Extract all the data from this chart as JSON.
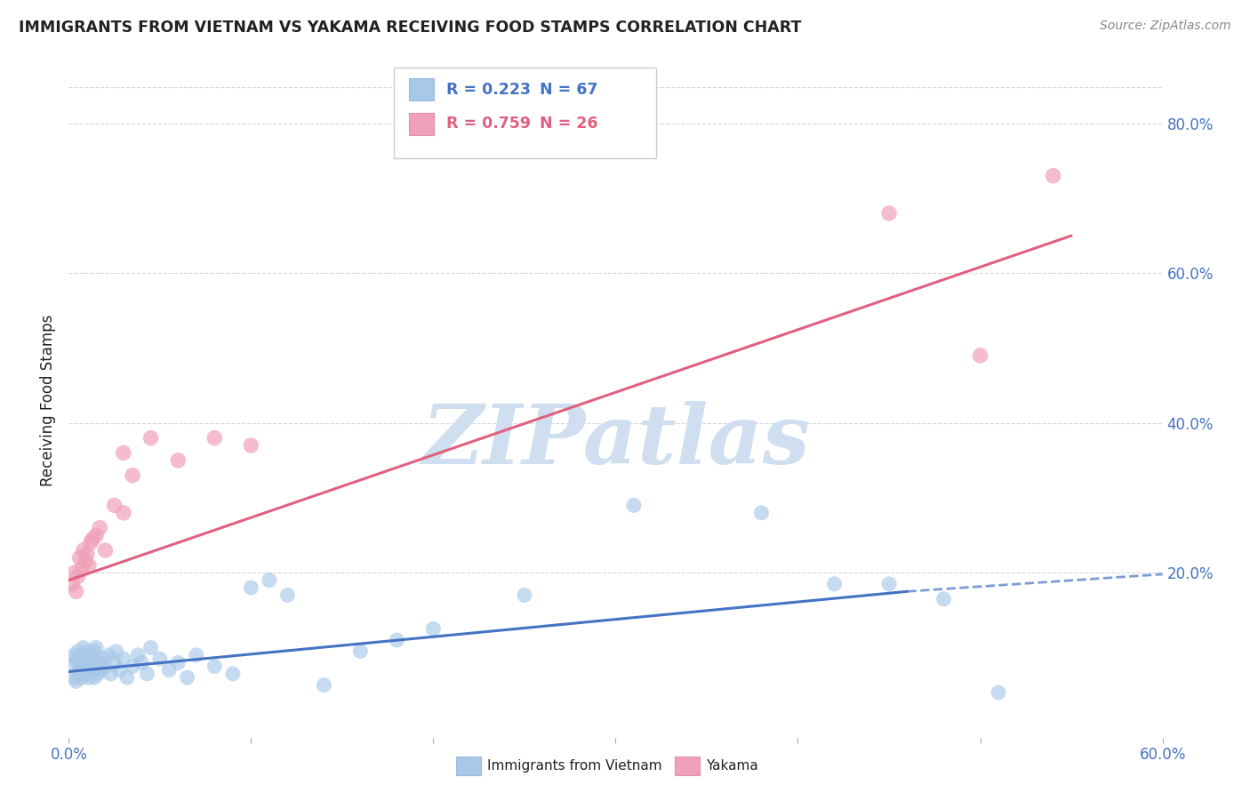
{
  "title": "IMMIGRANTS FROM VIETNAM VS YAKAMA RECEIVING FOOD STAMPS CORRELATION CHART",
  "source": "Source: ZipAtlas.com",
  "ylabel": "Receiving Food Stamps",
  "xlim": [
    0.0,
    0.6
  ],
  "ylim": [
    -0.02,
    0.88
  ],
  "yticks": [
    0.0,
    0.2,
    0.4,
    0.6,
    0.8
  ],
  "ytick_labels": [
    "",
    "20.0%",
    "40.0%",
    "60.0%",
    "80.0%"
  ],
  "xtick_positions": [
    0.0,
    0.1,
    0.2,
    0.3,
    0.4,
    0.5,
    0.6
  ],
  "xtick_labels": [
    "0.0%",
    "",
    "",
    "",
    "",
    "",
    "60.0%"
  ],
  "legend_r_blue": "R = 0.223",
  "legend_n_blue": "N = 67",
  "legend_r_pink": "R = 0.759",
  "legend_n_pink": "N = 26",
  "blue_color": "#a8c8e8",
  "pink_color": "#f0a0b8",
  "line_blue": "#4472c4",
  "line_pink": "#e06080",
  "watermark": "ZIPatlas",
  "watermark_color": "#d0dff0",
  "axis_tick_color": "#4472c4",
  "title_color": "#222222",
  "source_color": "#888888",
  "background_color": "#ffffff",
  "grid_color": "#cccccc",
  "legend_blue_text_color": "#4472c4",
  "legend_pink_text_color": "#e06080",
  "legend_blue_n_color": "#4472c4",
  "legend_pink_n_color": "#e06080",
  "blue_scatter_x": [
    0.002,
    0.003,
    0.003,
    0.004,
    0.004,
    0.005,
    0.005,
    0.005,
    0.006,
    0.006,
    0.007,
    0.007,
    0.008,
    0.008,
    0.009,
    0.009,
    0.01,
    0.01,
    0.01,
    0.011,
    0.011,
    0.012,
    0.012,
    0.013,
    0.013,
    0.014,
    0.014,
    0.015,
    0.015,
    0.016,
    0.017,
    0.018,
    0.019,
    0.02,
    0.022,
    0.023,
    0.025,
    0.026,
    0.028,
    0.03,
    0.032,
    0.035,
    0.038,
    0.04,
    0.043,
    0.045,
    0.05,
    0.055,
    0.06,
    0.065,
    0.07,
    0.08,
    0.09,
    0.1,
    0.11,
    0.12,
    0.14,
    0.16,
    0.18,
    0.2,
    0.25,
    0.31,
    0.38,
    0.42,
    0.45,
    0.48,
    0.51
  ],
  "blue_scatter_y": [
    0.075,
    0.06,
    0.09,
    0.055,
    0.085,
    0.065,
    0.08,
    0.095,
    0.07,
    0.085,
    0.06,
    0.09,
    0.075,
    0.1,
    0.065,
    0.08,
    0.07,
    0.085,
    0.095,
    0.075,
    0.06,
    0.08,
    0.09,
    0.07,
    0.085,
    0.06,
    0.095,
    0.075,
    0.1,
    0.065,
    0.08,
    0.07,
    0.085,
    0.075,
    0.09,
    0.065,
    0.08,
    0.095,
    0.07,
    0.085,
    0.06,
    0.075,
    0.09,
    0.08,
    0.065,
    0.1,
    0.085,
    0.07,
    0.08,
    0.06,
    0.09,
    0.075,
    0.065,
    0.18,
    0.19,
    0.17,
    0.05,
    0.095,
    0.11,
    0.125,
    0.17,
    0.29,
    0.28,
    0.185,
    0.185,
    0.165,
    0.04
  ],
  "pink_scatter_x": [
    0.002,
    0.003,
    0.004,
    0.005,
    0.006,
    0.007,
    0.008,
    0.009,
    0.01,
    0.011,
    0.012,
    0.013,
    0.015,
    0.017,
    0.02,
    0.025,
    0.03,
    0.035,
    0.03,
    0.045,
    0.06,
    0.08,
    0.1,
    0.45,
    0.5,
    0.54
  ],
  "pink_scatter_y": [
    0.185,
    0.2,
    0.175,
    0.195,
    0.22,
    0.205,
    0.23,
    0.215,
    0.225,
    0.21,
    0.24,
    0.245,
    0.25,
    0.26,
    0.23,
    0.29,
    0.28,
    0.33,
    0.36,
    0.38,
    0.35,
    0.38,
    0.37,
    0.68,
    0.49,
    0.73
  ],
  "blue_line_x": [
    0.0,
    0.46
  ],
  "blue_line_y": [
    0.068,
    0.175
  ],
  "dashed_line_x": [
    0.46,
    0.6
  ],
  "dashed_line_y": [
    0.175,
    0.198
  ],
  "pink_line_x": [
    0.0,
    0.55
  ],
  "pink_line_y": [
    0.19,
    0.65
  ]
}
